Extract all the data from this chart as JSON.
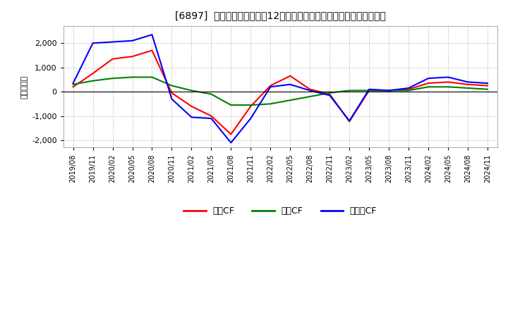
{
  "title": "[6897]  キャッシュフローの12か月移動合計の対前年同期増減額の推移",
  "ylabel": "（百万円）",
  "background_color": "#ffffff",
  "plot_bg_color": "#ffffff",
  "grid_color": "#aaaaaa",
  "ylim": [
    -2300,
    2700
  ],
  "yticks": [
    -2000,
    -1000,
    0,
    1000,
    2000
  ],
  "x_labels": [
    "2019/08",
    "2019/11",
    "2020/02",
    "2020/05",
    "2020/08",
    "2020/11",
    "2021/02",
    "2021/05",
    "2021/08",
    "2021/11",
    "2022/02",
    "2022/05",
    "2022/08",
    "2022/11",
    "2023/02",
    "2023/05",
    "2023/08",
    "2023/11",
    "2024/02",
    "2024/05",
    "2024/08",
    "2024/11"
  ],
  "series": {
    "営業CF": {
      "color": "#ff0000",
      "values": [
        200,
        750,
        1350,
        1450,
        1700,
        -50,
        -600,
        -1000,
        -1750,
        -600,
        250,
        650,
        100,
        -100,
        -1230,
        50,
        50,
        100,
        350,
        400,
        300,
        250
      ]
    },
    "投賃CF": {
      "color": "#008000",
      "values": [
        300,
        450,
        550,
        600,
        600,
        250,
        50,
        -100,
        -550,
        -550,
        -500,
        -350,
        -200,
        -50,
        50,
        50,
        50,
        50,
        200,
        200,
        150,
        100
      ]
    },
    "フリーCF": {
      "color": "#0000ff",
      "values": [
        350,
        2000,
        2050,
        2100,
        2350,
        -300,
        -1050,
        -1100,
        -2100,
        -1100,
        200,
        300,
        50,
        -150,
        -1200,
        100,
        50,
        150,
        550,
        600,
        400,
        350
      ]
    }
  },
  "legend_labels": [
    "営業CF",
    "投賃CF",
    "フリーCF"
  ],
  "legend_colors": [
    "#ff0000",
    "#008000",
    "#0000ff"
  ]
}
